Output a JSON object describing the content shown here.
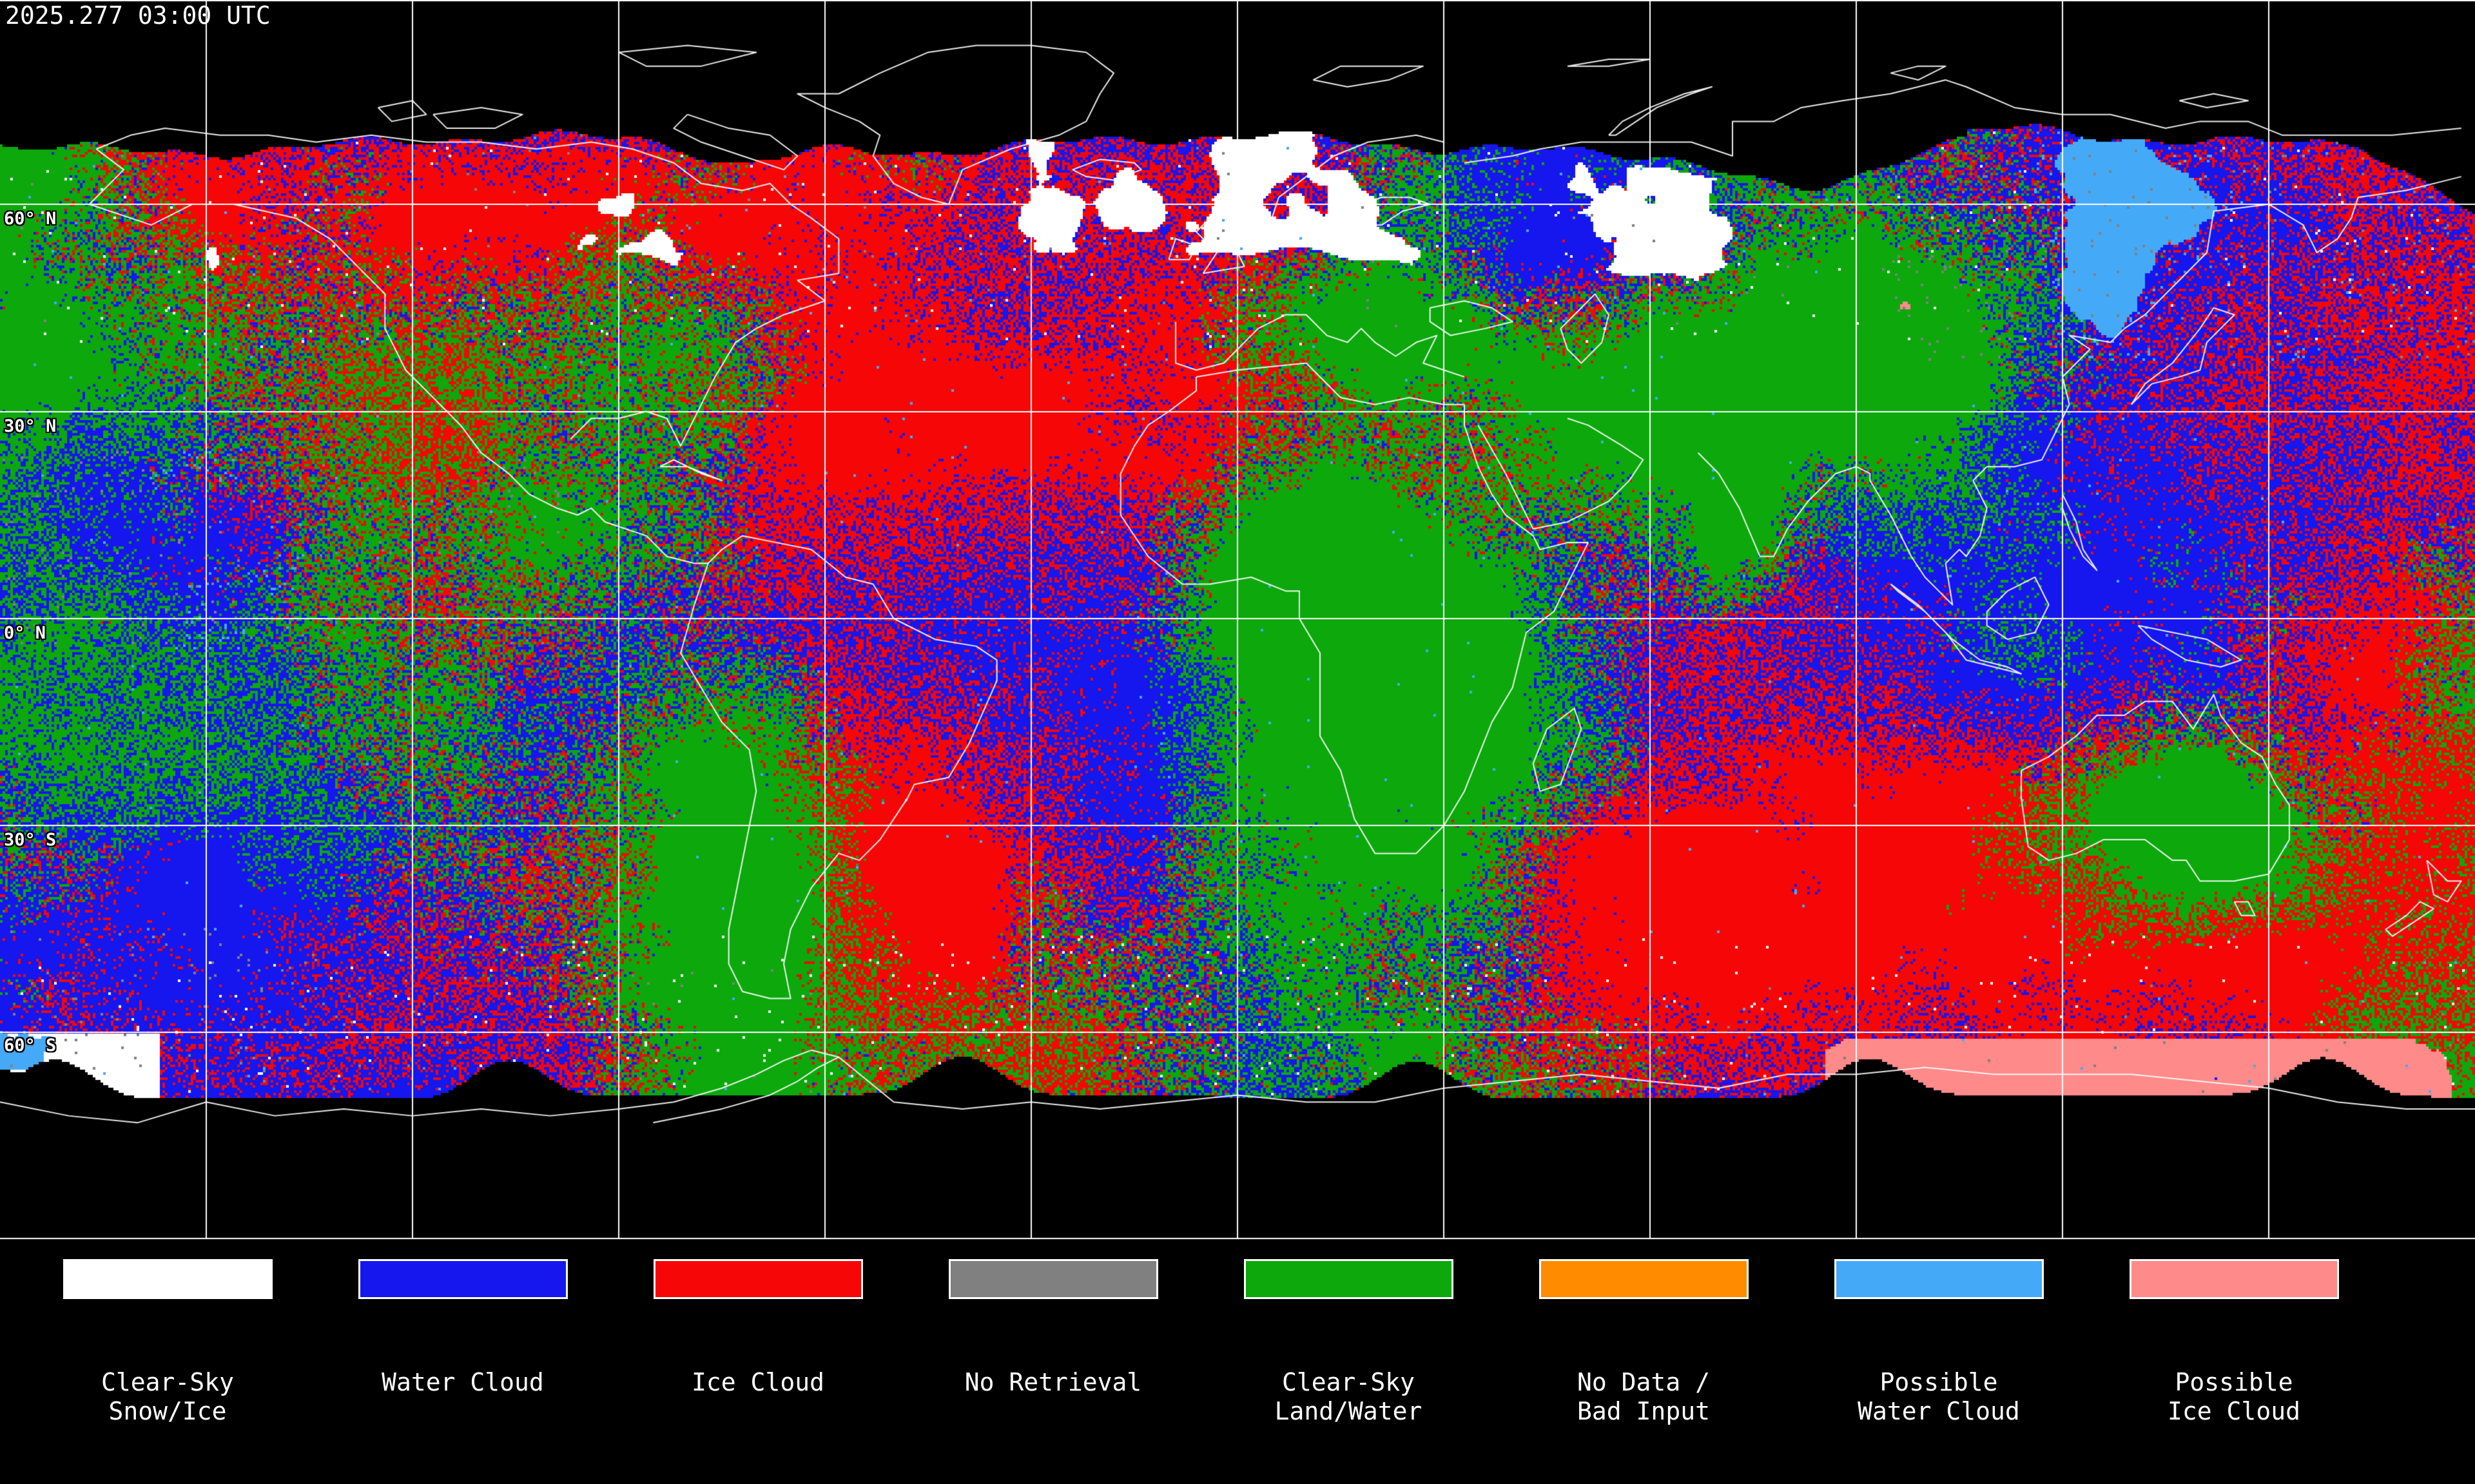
{
  "header": {
    "timestamp": "2025.277 03:00 UTC"
  },
  "map": {
    "latitude_labels": [
      {
        "text": "60° N"
      },
      {
        "text": "30° N"
      },
      {
        "text": "0° N"
      },
      {
        "text": "30° S"
      },
      {
        "text": "60° S"
      }
    ],
    "palette": {
      "background": "#000000",
      "gridline": "#ffffff",
      "coastline": "#ffffff",
      "clear_sky_snow_ice": "#ffffff",
      "water_cloud": "#1616ee",
      "ice_cloud": "#f60606",
      "no_retrieval": "#808080",
      "clear_sky_land_water": "#0ca80c",
      "no_data_bad_input": "#ff8c00",
      "possible_water_cloud": "#44aaf8",
      "possible_ice_cloud": "#ff8a8a"
    }
  },
  "legend": {
    "items": [
      {
        "key": "clear-sky-snow-ice",
        "color": "#ffffff",
        "lines": [
          "Clear-Sky",
          "Snow/Ice"
        ]
      },
      {
        "key": "water-cloud",
        "color": "#1616ee",
        "lines": [
          "Water Cloud"
        ]
      },
      {
        "key": "ice-cloud",
        "color": "#f60606",
        "lines": [
          "Ice Cloud"
        ]
      },
      {
        "key": "no-retrieval",
        "color": "#808080",
        "lines": [
          "No Retrieval"
        ]
      },
      {
        "key": "clear-sky-land-water",
        "color": "#0ca80c",
        "lines": [
          "Clear-Sky",
          "Land/Water"
        ]
      },
      {
        "key": "no-data-bad-input",
        "color": "#ff8c00",
        "lines": [
          "No Data /",
          "Bad Input"
        ]
      },
      {
        "key": "possible-water-cloud",
        "color": "#44aaf8",
        "lines": [
          "Possible",
          "Water Cloud"
        ]
      },
      {
        "key": "possible-ice-cloud",
        "color": "#ff8a8a",
        "lines": [
          "Possible",
          "Ice Cloud"
        ]
      }
    ]
  }
}
